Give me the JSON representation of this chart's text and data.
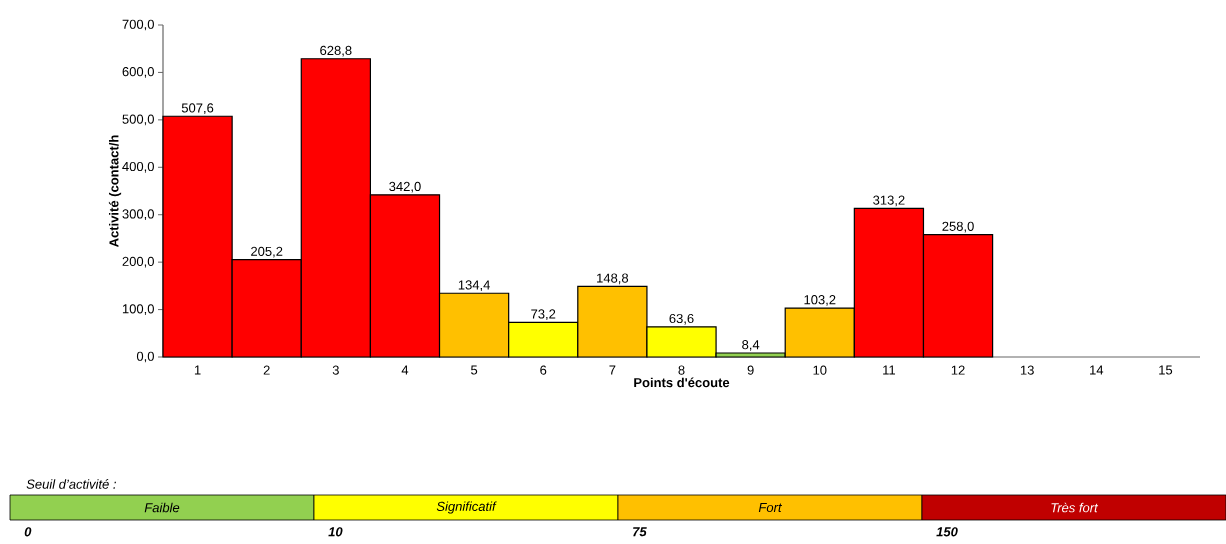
{
  "chart_data": [
    {
      "type": "bar",
      "xlabel": "Points d'écoute",
      "ylabel": "Activité (contact/h",
      "categories": [
        "1",
        "2",
        "3",
        "4",
        "5",
        "6",
        "7",
        "8",
        "9",
        "10",
        "11",
        "12",
        "13",
        "14",
        "15"
      ],
      "values": [
        507.6,
        205.2,
        628.8,
        342.0,
        134.4,
        73.2,
        148.8,
        63.6,
        8.4,
        103.2,
        313.2,
        258.0,
        null,
        null,
        null
      ],
      "colors": [
        "#ff0000",
        "#ff0000",
        "#ff0000",
        "#ff0000",
        "#ffc000",
        "#ffff00",
        "#ffc000",
        "#ffff00",
        "#92d050",
        "#ffc000",
        "#ff0000",
        "#ff0000",
        null,
        null,
        null
      ],
      "value_labels": [
        "507,6",
        "205,2",
        "628,8",
        "342,0",
        "134,4",
        "73,2",
        "148,8",
        "63,6",
        "8,4",
        "103,2",
        "313,2",
        "258,0",
        null,
        null,
        null
      ],
      "ylim": [
        0,
        700
      ],
      "yticks": [
        {
          "value": 0,
          "label": "0,0"
        },
        {
          "value": 100,
          "label": "100,0"
        },
        {
          "value": 200,
          "label": "200,0"
        },
        {
          "value": 300,
          "label": "300,0"
        },
        {
          "value": 400,
          "label": "400,0"
        },
        {
          "value": 500,
          "label": "500,0"
        },
        {
          "value": 600,
          "label": "600,0"
        },
        {
          "value": 700,
          "label": "700,0"
        }
      ]
    },
    {
      "type": "other",
      "title": "Seuil d’activité :",
      "categories": [
        "Faible",
        "Significatif",
        "Fort",
        "Très fort"
      ],
      "values": [
        0,
        10,
        75,
        150
      ],
      "colors": [
        "#92d050",
        "#ffff00",
        "#ffc000",
        "#c00000"
      ],
      "data_labels": true
    }
  ]
}
